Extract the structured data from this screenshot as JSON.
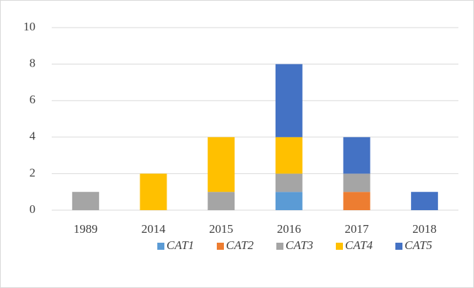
{
  "chart_data": {
    "type": "bar",
    "stacked": true,
    "categories": [
      "1989",
      "2014",
      "2015",
      "2016",
      "2017",
      "2018"
    ],
    "series": [
      {
        "name": "CAT1",
        "color": "#5b9bd5",
        "values": [
          0,
          0,
          0,
          1,
          0,
          0
        ]
      },
      {
        "name": "CAT2",
        "color": "#ed7d31",
        "values": [
          0,
          0,
          0,
          0,
          1,
          0
        ]
      },
      {
        "name": "CAT3",
        "color": "#a5a5a5",
        "values": [
          1,
          0,
          1,
          1,
          1,
          0
        ]
      },
      {
        "name": "CAT4",
        "color": "#ffc000",
        "values": [
          0,
          2,
          3,
          2,
          0,
          0
        ]
      },
      {
        "name": "CAT5",
        "color": "#4472c4",
        "values": [
          0,
          0,
          0,
          4,
          2,
          1
        ]
      }
    ],
    "ylim": [
      0,
      10
    ],
    "yticks": [
      0,
      2,
      4,
      6,
      8,
      10
    ],
    "grid": true,
    "legend": "bottom"
  }
}
